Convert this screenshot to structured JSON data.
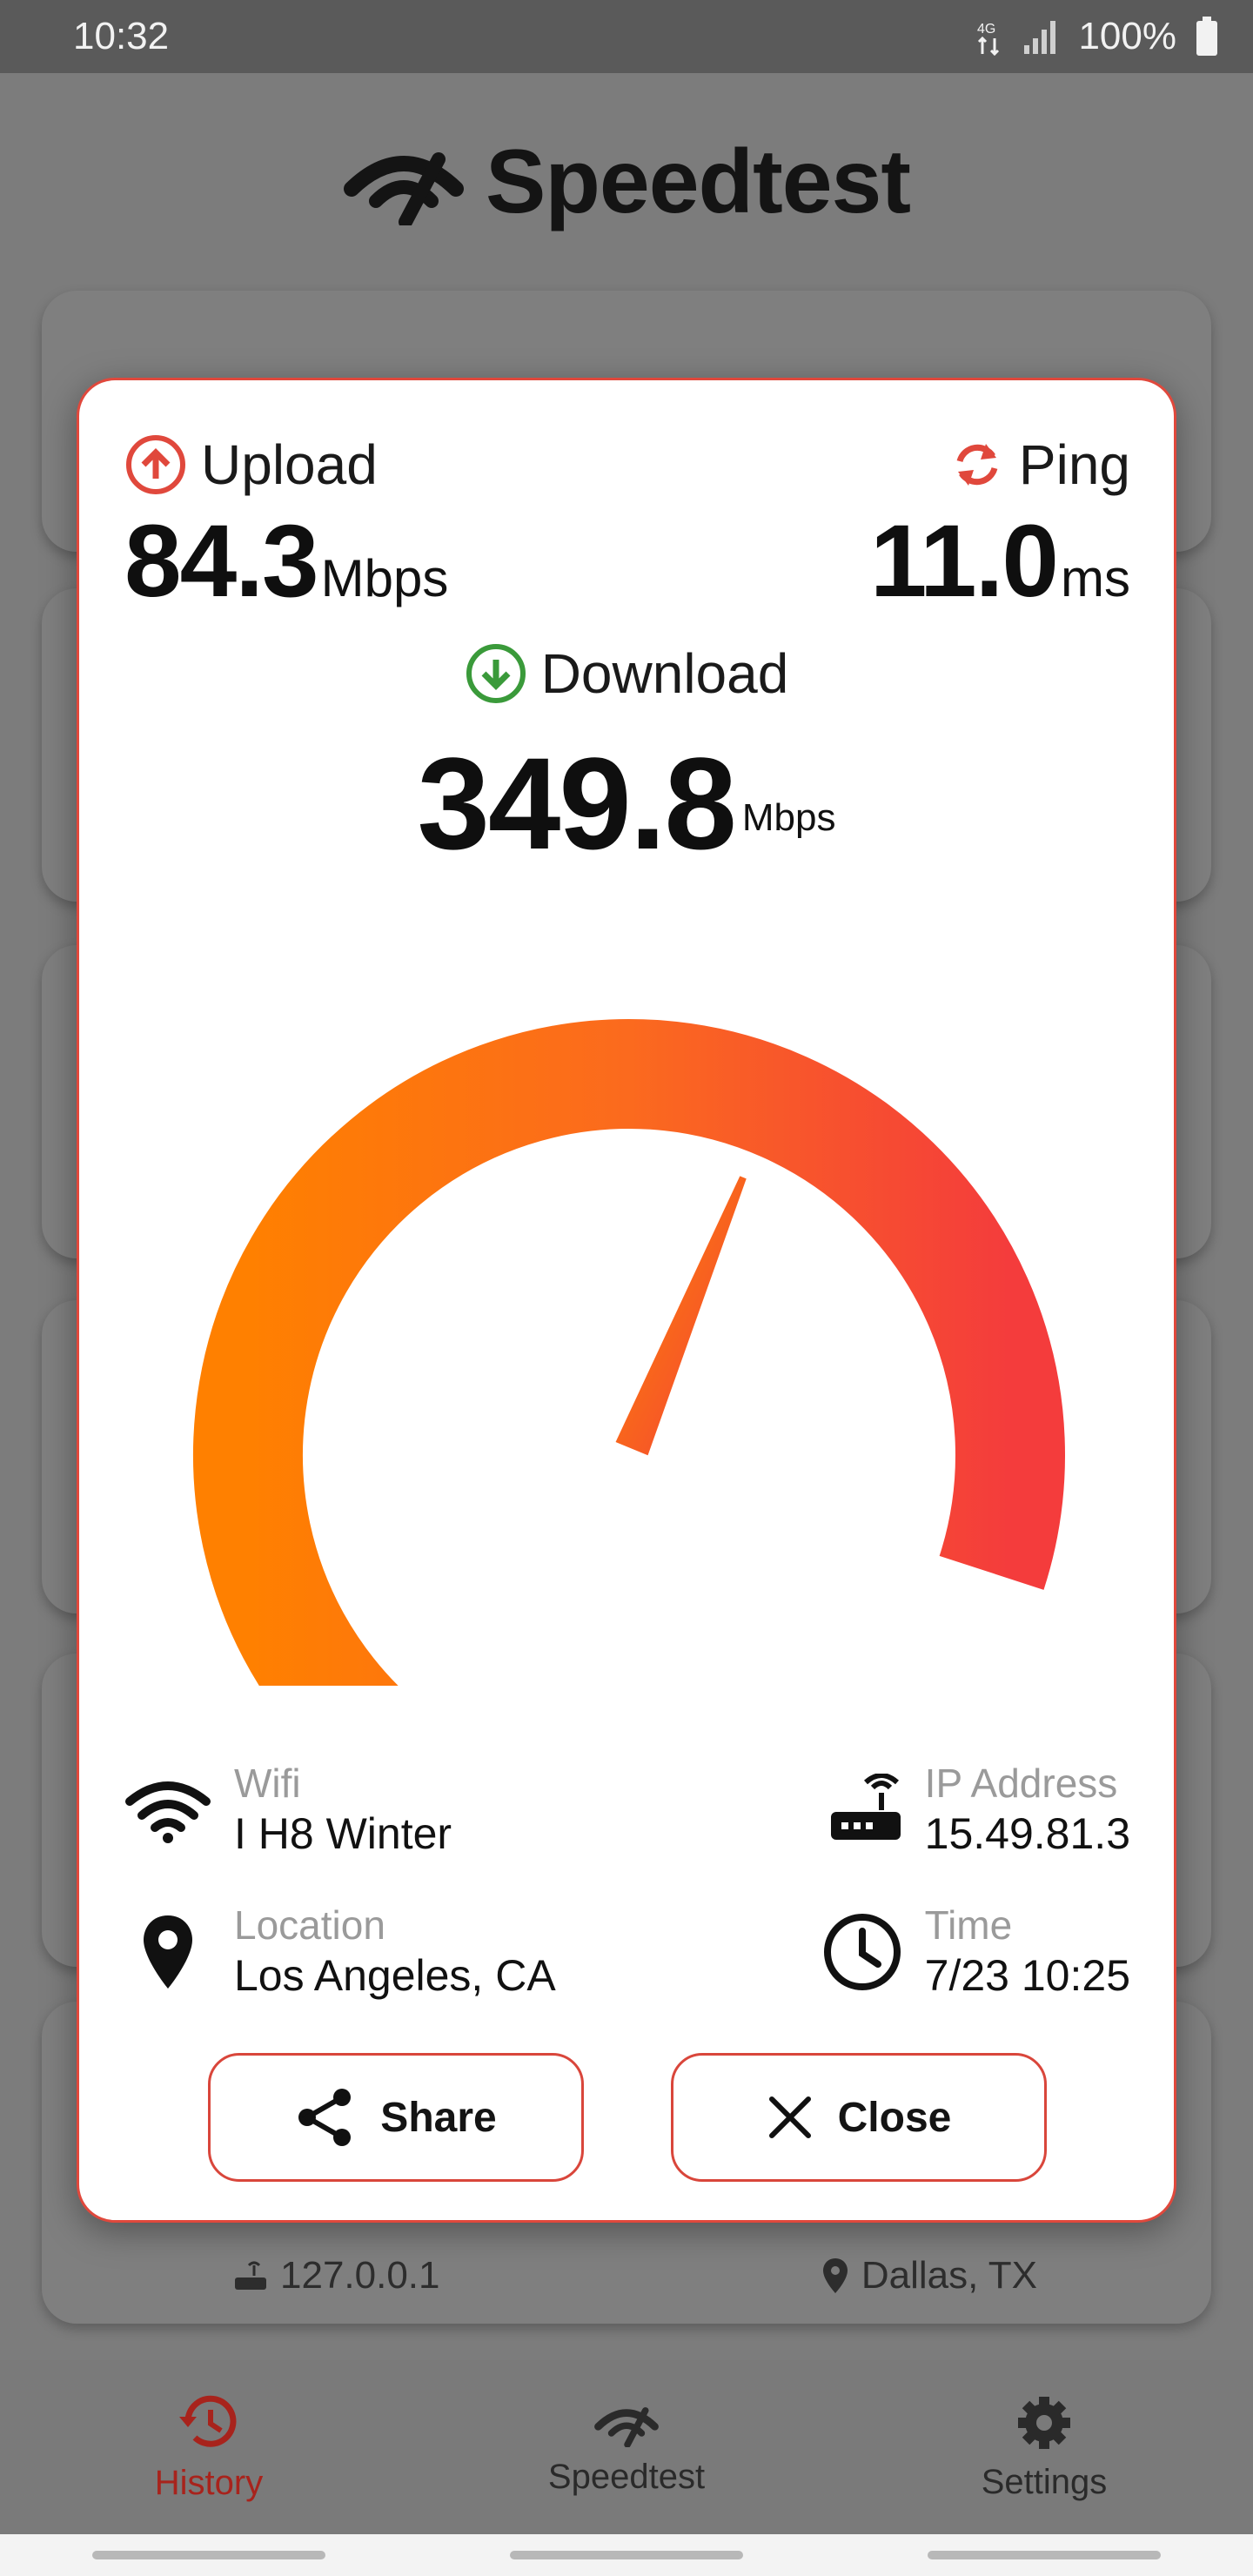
{
  "status_bar": {
    "time": "10:32",
    "network": "4G LTE",
    "battery": "100%"
  },
  "app": {
    "title": "Speedtest"
  },
  "background": {
    "footer_ip": "127.0.0.1",
    "footer_location": "Dallas, TX"
  },
  "result": {
    "upload_label": "Upload",
    "upload_value": "84.3",
    "upload_unit": "Mbps",
    "ping_label": "Ping",
    "ping_value": "11.0",
    "ping_unit": "ms",
    "download_label": "Download",
    "download_value": "349.8",
    "download_unit": "Mbps",
    "gauge_level": 0.66,
    "wifi_label": "Wifi",
    "wifi_value": "I H8 Winter",
    "ip_label": "IP Address",
    "ip_value": "15.49.81.3",
    "location_label": "Location",
    "location_value": "Los Angeles, CA",
    "time_label": "Time",
    "time_value": "7/23 10:25",
    "share_label": "Share",
    "close_label": "Close"
  },
  "nav": {
    "history": "History",
    "speedtest": "Speedtest",
    "settings": "Settings"
  },
  "colors": {
    "upload": "#e0483c",
    "download": "#3a9a3a",
    "accent": "#d9463b",
    "gauge_start": "#ff8000",
    "gauge_end": "#f43c3c"
  }
}
